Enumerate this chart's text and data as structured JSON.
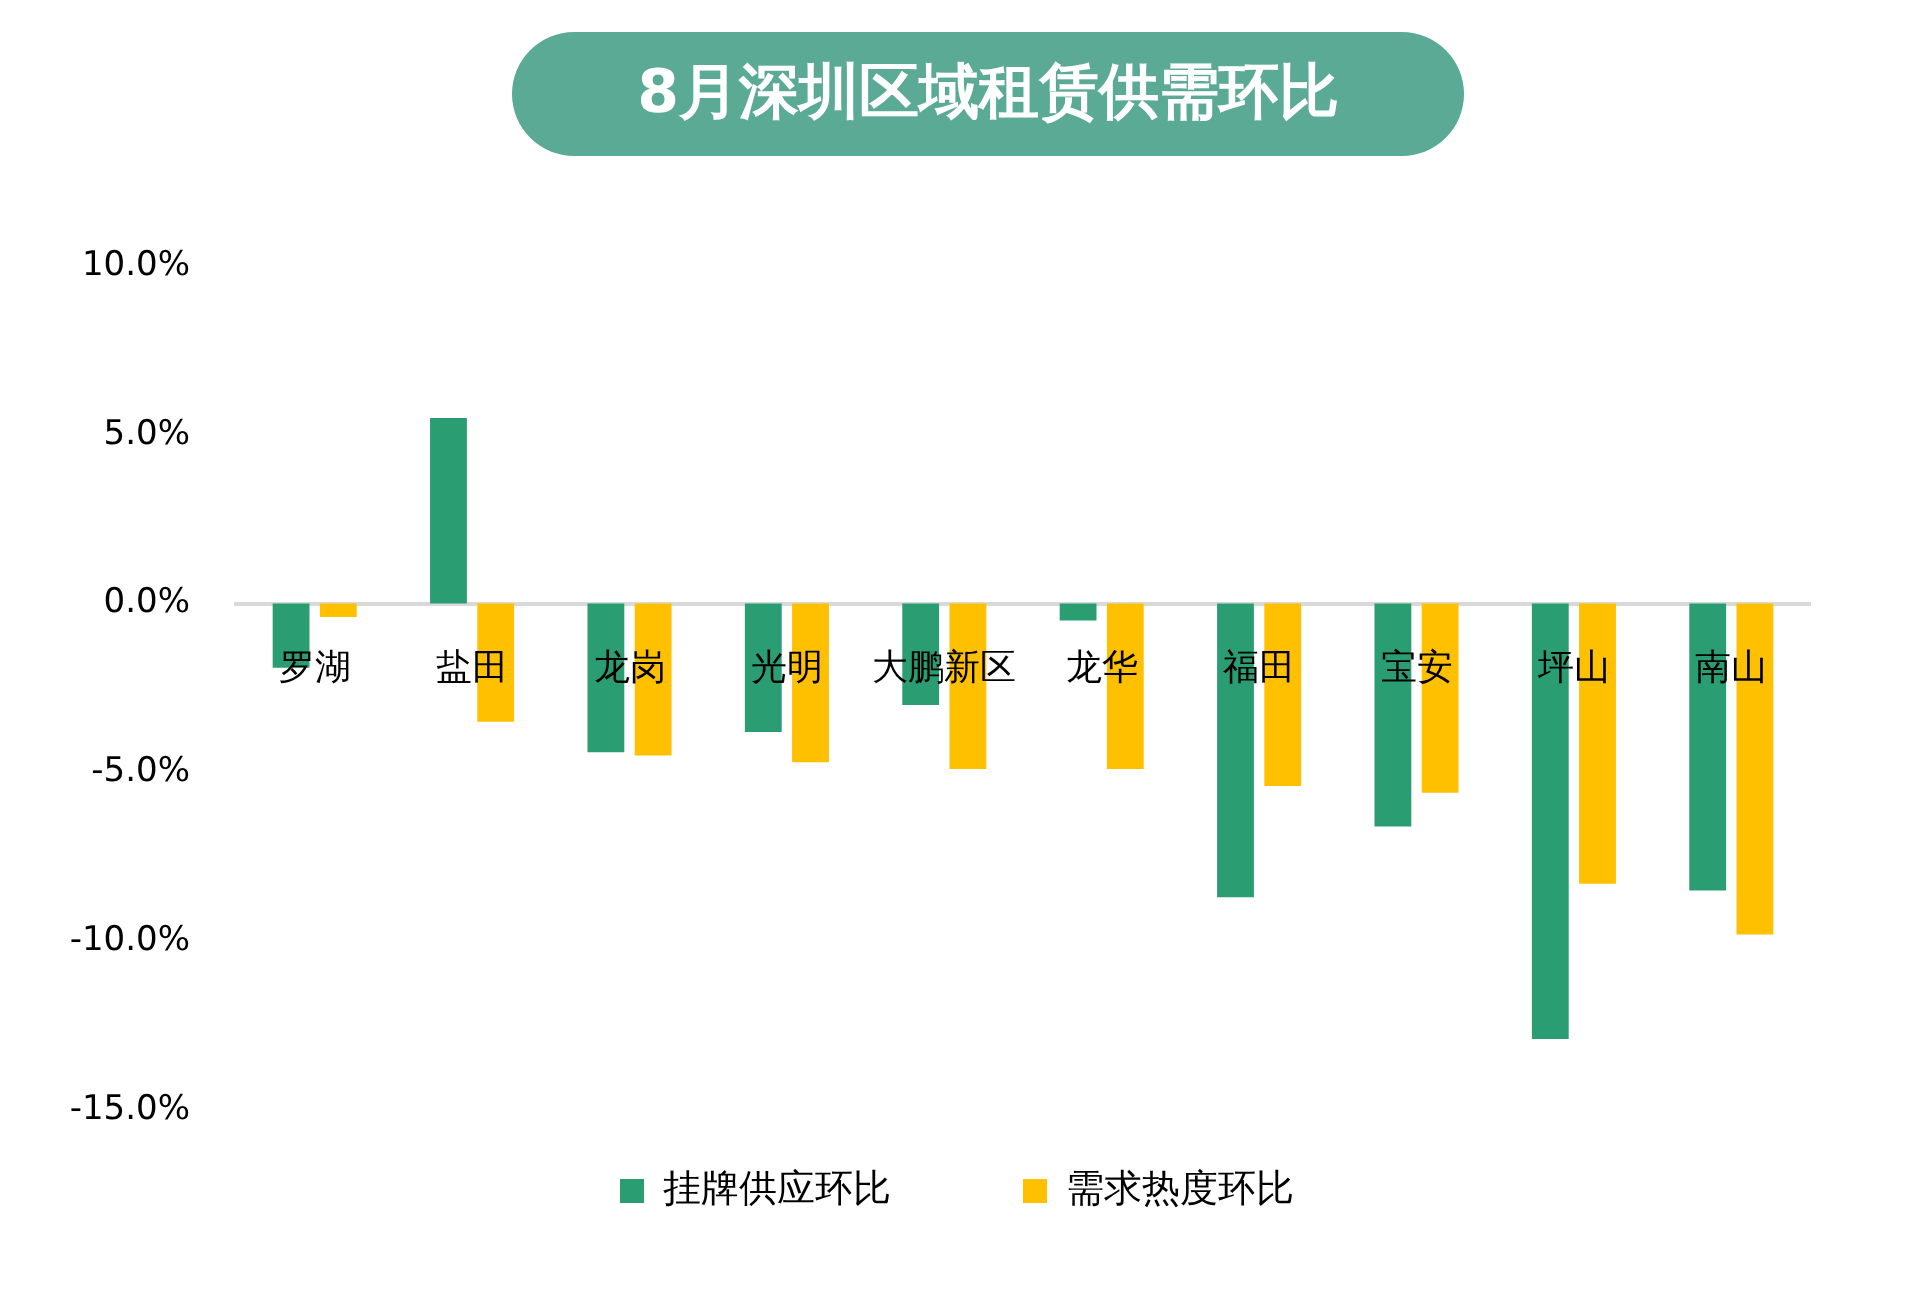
{
  "chart_data": {
    "type": "bar",
    "title": "8月深圳区域租赁供需环比",
    "categories": [
      "罗湖",
      "盐田",
      "龙岗",
      "光明",
      "大鹏新区",
      "龙华",
      "福田",
      "宝安",
      "坪山",
      "南山"
    ],
    "series": [
      {
        "name": "挂牌供应环比",
        "color": "#2a9d72",
        "values": [
          -1.9,
          5.5,
          -4.4,
          -3.8,
          -3.0,
          -0.5,
          -8.7,
          -6.6,
          -12.9,
          -8.5
        ]
      },
      {
        "name": "需求热度环比",
        "color": "#ffc000",
        "values": [
          -0.4,
          -3.5,
          -4.5,
          -4.7,
          -4.9,
          -4.9,
          -5.4,
          -5.6,
          -8.3,
          -9.8
        ]
      }
    ],
    "ylim": [
      -15,
      10
    ],
    "yticks": [
      {
        "value": -15,
        "label": "-15.0%"
      },
      {
        "value": -10,
        "label": "-10.0%"
      },
      {
        "value": -5,
        "label": "-5.0%"
      },
      {
        "value": 0,
        "label": "0.0%"
      },
      {
        "value": 5,
        "label": "5.0%"
      },
      {
        "value": 10,
        "label": "10.0%"
      }
    ],
    "grid": false,
    "legend": "bottom"
  }
}
